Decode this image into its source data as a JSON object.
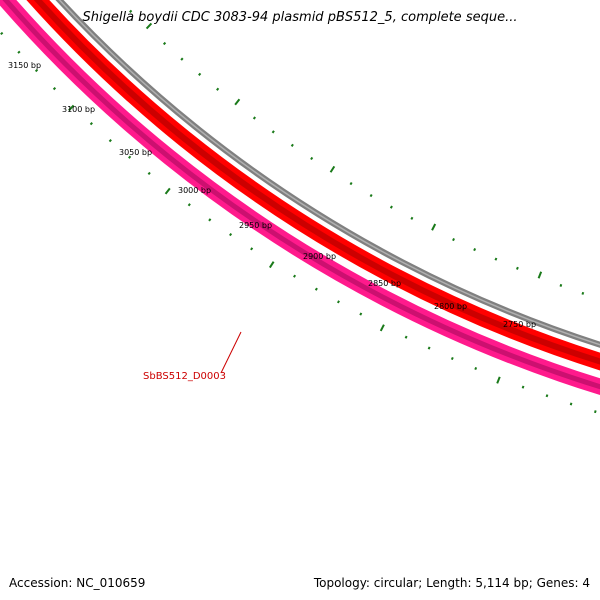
{
  "title": "Shigella boydii CDC 3083-94 plasmid pBS512_5, complete seque...",
  "footer": {
    "accession": "Accession: NC_010659",
    "summary": "Topology: circular; Length: 5,114 bp; Genes: 4"
  },
  "colors": {
    "backbone": "#808080",
    "forward_feature": "#ff0000",
    "forward_feature_dark": "#cc0000",
    "reverse_feature": "#ff1a8c",
    "reverse_feature_dark": "#cc1070",
    "ticks": "#1a7a1a",
    "gene_label": "#cc0000"
  },
  "tick_labels": [
    "3150 bp",
    "3100 bp",
    "3050 bp",
    "3000 bp",
    "2950 bp",
    "2900 bp",
    "2850 bp",
    "2800 bp",
    "2750 bp"
  ],
  "gene_labels": [
    "SbBS512_D0003"
  ]
}
